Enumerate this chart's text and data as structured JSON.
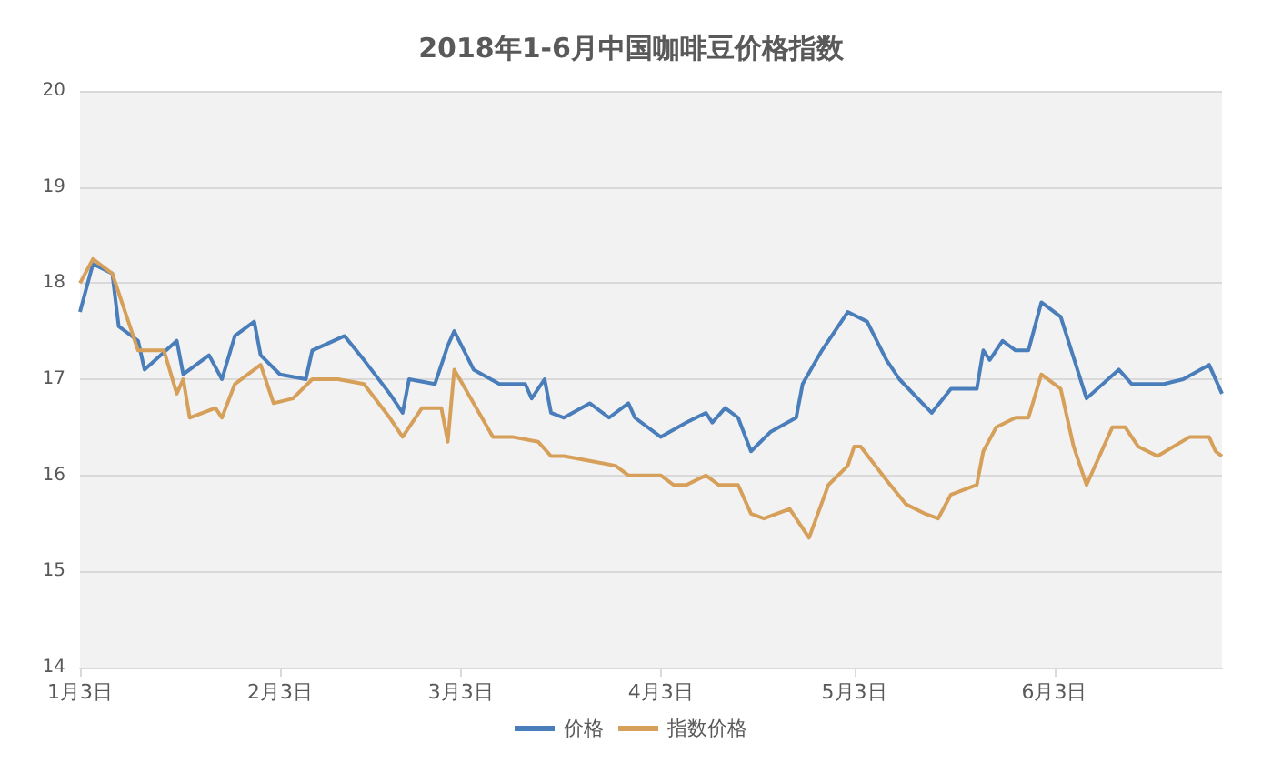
{
  "chart_data": {
    "type": "line",
    "title": "2018年1-6月中国咖啡豆价格指数",
    "xlim": [
      "--01-03",
      "--06-29"
    ],
    "xticks": [
      {
        "value": "--01-03",
        "label": "1月3日"
      },
      {
        "value": "--02-03",
        "label": "2月3日"
      },
      {
        "value": "--03-03",
        "label": "3月3日"
      },
      {
        "value": "--04-03",
        "label": "4月3日"
      },
      {
        "value": "--05-03",
        "label": "5月3日"
      },
      {
        "value": "--06-03",
        "label": "6月3日"
      }
    ],
    "ylim": [
      14,
      20
    ],
    "yticks": [
      14,
      15,
      16,
      17,
      18,
      19,
      20
    ],
    "grid": "y",
    "legend": "bottom",
    "marker": "none",
    "line_style": "solid",
    "series": [
      {
        "name": "价格",
        "color": "#4a7ebb",
        "x": [
          "--01-03",
          "--01-05",
          "--01-08",
          "--01-09",
          "--01-12",
          "--01-13",
          "--01-18",
          "--01-19",
          "--01-23",
          "--01-25",
          "--01-27",
          "--01-30",
          "--01-31",
          "--02-03",
          "--02-07",
          "--02-08",
          "--02-13",
          "--02-16",
          "--02-20",
          "--02-22",
          "--02-23",
          "--02-27",
          "--03-01",
          "--03-02",
          "--03-05",
          "--03-09",
          "--03-13",
          "--03-14",
          "--03-16",
          "--03-17",
          "--03-19",
          "--03-23",
          "--03-26",
          "--03-29",
          "--03-30",
          "--04-03",
          "--04-07",
          "--04-10",
          "--04-11",
          "--04-13",
          "--04-15",
          "--04-17",
          "--04-20",
          "--04-24",
          "--04-25",
          "--04-28",
          "--05-02",
          "--05-05",
          "--05-08",
          "--05-10",
          "--05-15",
          "--05-18",
          "--05-22",
          "--05-23",
          "--05-24",
          "--05-26",
          "--05-28",
          "--05-30",
          "--06-01",
          "--06-04",
          "--06-08",
          "--06-13",
          "--06-15",
          "--06-20",
          "--06-23",
          "--06-27",
          "--06-29"
        ],
        "values": [
          17.7,
          18.2,
          18.1,
          17.55,
          17.4,
          17.1,
          17.4,
          17.05,
          17.25,
          17.0,
          17.45,
          17.6,
          17.25,
          17.05,
          17.0,
          17.3,
          17.45,
          17.2,
          16.85,
          16.65,
          17.0,
          16.95,
          17.35,
          17.5,
          17.1,
          16.95,
          16.95,
          16.8,
          17.0,
          16.65,
          16.6,
          16.75,
          16.6,
          16.75,
          16.6,
          16.4,
          16.55,
          16.65,
          16.55,
          16.7,
          16.6,
          16.25,
          16.45,
          16.6,
          16.95,
          17.3,
          17.7,
          17.6,
          17.2,
          17.0,
          16.65,
          16.9,
          16.9,
          17.3,
          17.2,
          17.4,
          17.3,
          17.3,
          17.8,
          17.65,
          16.8,
          17.1,
          16.95,
          16.95,
          17.0,
          17.15,
          16.85
        ]
      },
      {
        "name": "指数价格",
        "color": "#d6a05a",
        "x": [
          "--01-03",
          "--01-05",
          "--01-08",
          "--01-10",
          "--01-12",
          "--01-16",
          "--01-18",
          "--01-19",
          "--01-20",
          "--01-24",
          "--01-25",
          "--01-27",
          "--01-31",
          "--02-02",
          "--02-05",
          "--02-08",
          "--02-12",
          "--02-16",
          "--02-20",
          "--02-22",
          "--02-25",
          "--02-28",
          "--03-01",
          "--03-02",
          "--03-08",
          "--03-11",
          "--03-15",
          "--03-17",
          "--03-19",
          "--03-23",
          "--03-27",
          "--03-29",
          "--04-03",
          "--04-05",
          "--04-07",
          "--04-10",
          "--04-12",
          "--04-15",
          "--04-17",
          "--04-19",
          "--04-23",
          "--04-26",
          "--04-29",
          "--05-02",
          "--05-03",
          "--05-04",
          "--05-08",
          "--05-11",
          "--05-14",
          "--05-16",
          "--05-18",
          "--05-22",
          "--05-23",
          "--05-25",
          "--05-28",
          "--05-30",
          "--06-01",
          "--06-04",
          "--06-06",
          "--06-08",
          "--06-12",
          "--06-14",
          "--06-16",
          "--06-19",
          "--06-24",
          "--06-27",
          "--06-28",
          "--06-29"
        ],
        "values": [
          18.0,
          18.25,
          18.1,
          17.7,
          17.3,
          17.3,
          16.85,
          17.0,
          16.6,
          16.7,
          16.6,
          16.95,
          17.15,
          16.75,
          16.8,
          17.0,
          17.0,
          16.95,
          16.6,
          16.4,
          16.7,
          16.7,
          16.35,
          17.1,
          16.4,
          16.4,
          16.35,
          16.2,
          16.2,
          16.15,
          16.1,
          16.0,
          16.0,
          15.9,
          15.9,
          16.0,
          15.9,
          15.9,
          15.6,
          15.55,
          15.65,
          15.35,
          15.9,
          16.1,
          16.3,
          16.3,
          15.95,
          15.7,
          15.6,
          15.55,
          15.8,
          15.9,
          16.25,
          16.5,
          16.6,
          16.6,
          17.05,
          16.9,
          16.3,
          15.9,
          16.5,
          16.5,
          16.3,
          16.2,
          16.4,
          16.4,
          16.25,
          16.2
        ]
      }
    ]
  }
}
